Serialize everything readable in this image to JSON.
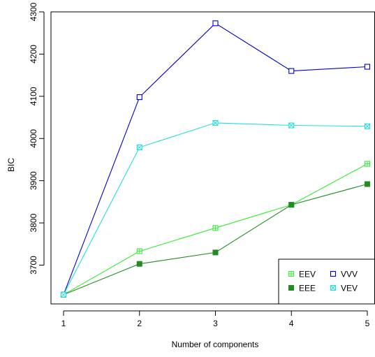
{
  "chart_data": {
    "type": "line",
    "title": "",
    "xlabel": "Number of components",
    "ylabel": "BIC",
    "x": [
      1,
      2,
      3,
      4,
      5
    ],
    "xlim": [
      1,
      5
    ],
    "ylim": [
      3620,
      4300
    ],
    "x_ticks": [
      1,
      2,
      3,
      4,
      5
    ],
    "y_ticks": [
      3700,
      3800,
      3900,
      4000,
      4100,
      4200,
      4300
    ],
    "grid": false,
    "legend_position": "bottom-right",
    "series": [
      {
        "name": "EEV",
        "color": "#33ee33",
        "marker": "square-plus",
        "values": [
          3630,
          3733,
          3788,
          3843,
          3940
        ]
      },
      {
        "name": "EEE",
        "color": "#228b22",
        "marker": "filled-square",
        "values": [
          3630,
          3703,
          3730,
          3843,
          3892
        ]
      },
      {
        "name": "VVV",
        "color": "#0000cc",
        "marker": "open-square",
        "values": [
          3630,
          4098,
          4273,
          4160,
          4170
        ]
      },
      {
        "name": "VEV",
        "color": "#22dddd",
        "marker": "square-x",
        "values": [
          3630,
          3979,
          4037,
          4031,
          4029
        ]
      }
    ]
  }
}
